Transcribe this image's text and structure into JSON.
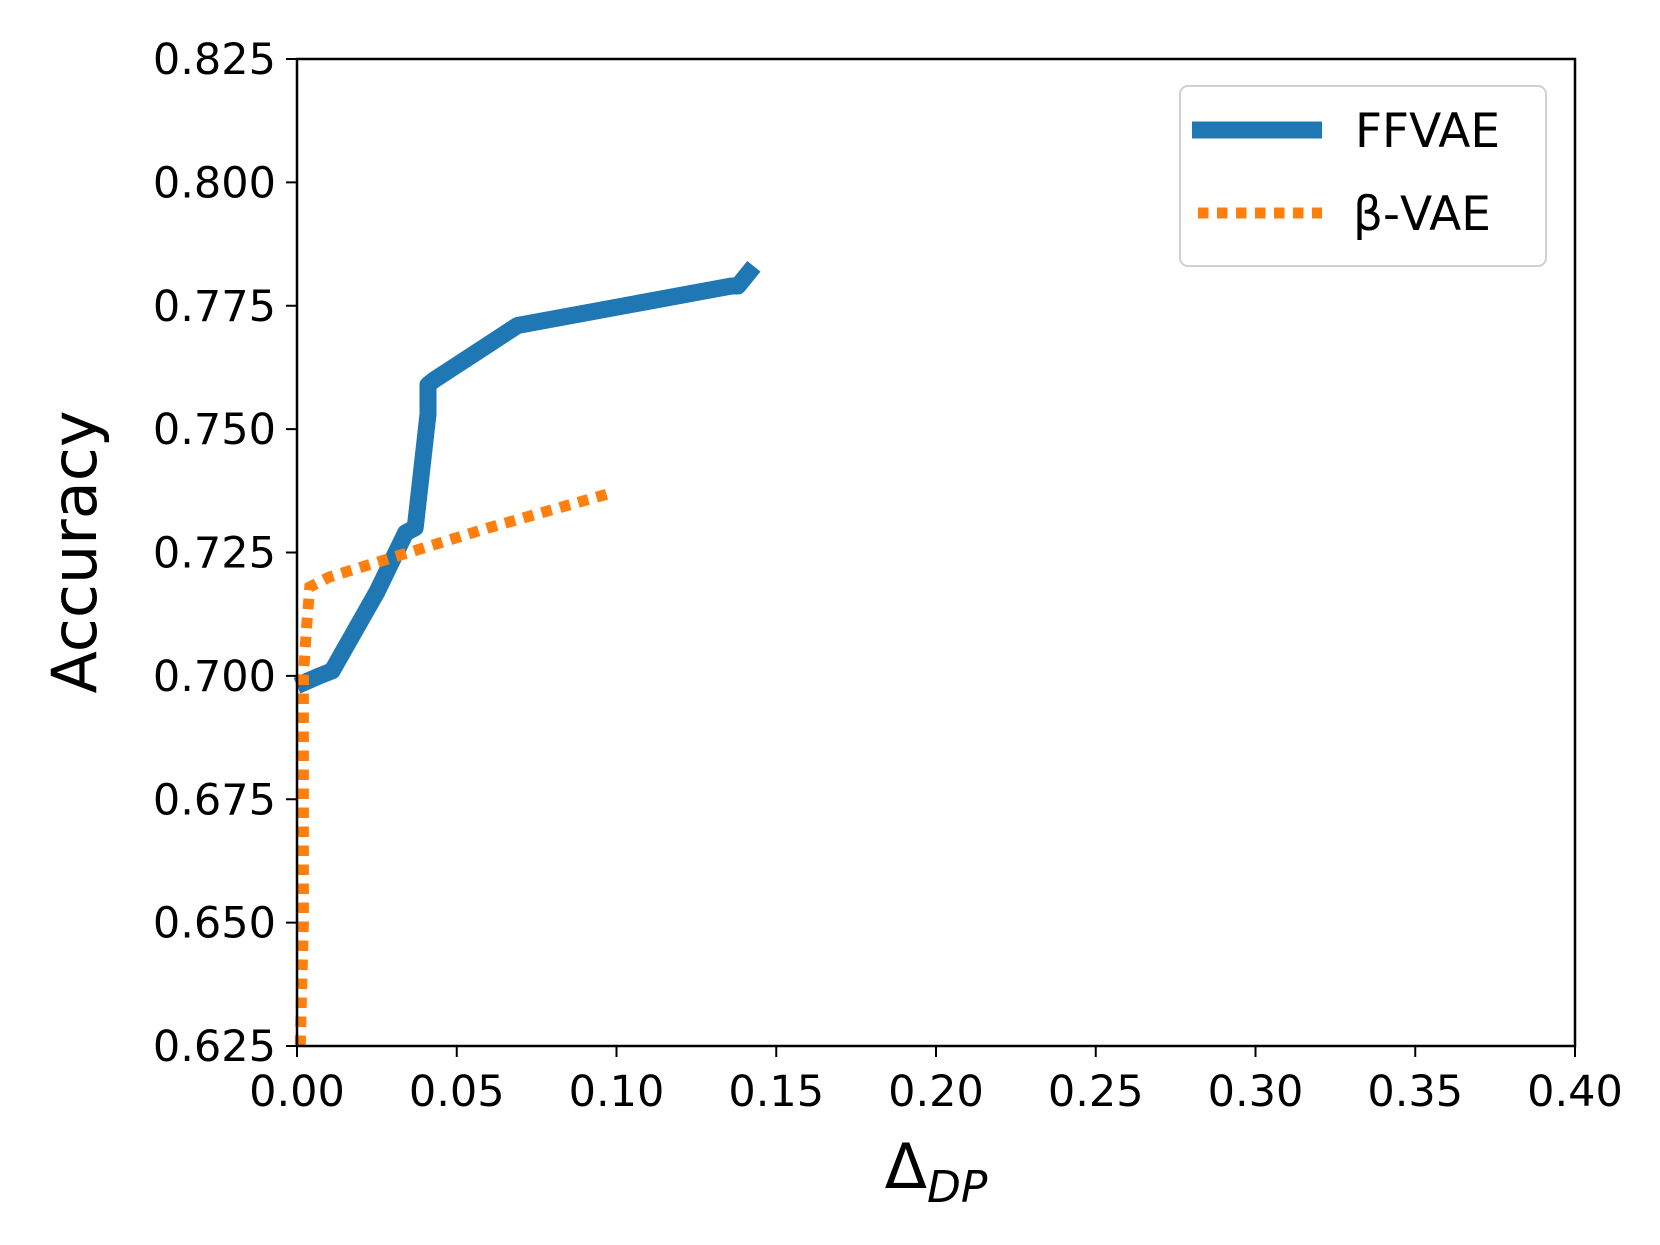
{
  "chart_data": {
    "type": "line",
    "title": "",
    "xlabel": "Δ",
    "xlabel_subscript": "DP",
    "ylabel": "Accuracy",
    "xlim": [
      0.0,
      0.4
    ],
    "ylim": [
      0.625,
      0.825
    ],
    "xticks": [
      "0.00",
      "0.05",
      "0.10",
      "0.15",
      "0.20",
      "0.25",
      "0.30",
      "0.35",
      "0.40"
    ],
    "yticks": [
      "0.625",
      "0.650",
      "0.675",
      "0.700",
      "0.725",
      "0.750",
      "0.775",
      "0.800",
      "0.825"
    ],
    "grid": false,
    "legend_position": "top-right",
    "series": [
      {
        "name": "FFVAE",
        "color": "#1f77b4",
        "style": "solid",
        "x": [
          0.0,
          0.007,
          0.011,
          0.025,
          0.034,
          0.037,
          0.041,
          0.041,
          0.043,
          0.069,
          0.136,
          0.138,
          0.143
        ],
        "y": [
          0.698,
          0.7,
          0.701,
          0.717,
          0.729,
          0.73,
          0.753,
          0.759,
          0.76,
          0.771,
          0.779,
          0.779,
          0.783
        ]
      },
      {
        "name": "β-VAE",
        "color": "#ff7f0e",
        "style": "dotted",
        "x": [
          0.001,
          0.002,
          0.002,
          0.002,
          0.003,
          0.004,
          0.01,
          0.03,
          0.06,
          0.098
        ],
        "y": [
          0.625,
          0.65,
          0.69,
          0.7,
          0.71,
          0.718,
          0.72,
          0.724,
          0.73,
          0.737
        ]
      }
    ]
  }
}
